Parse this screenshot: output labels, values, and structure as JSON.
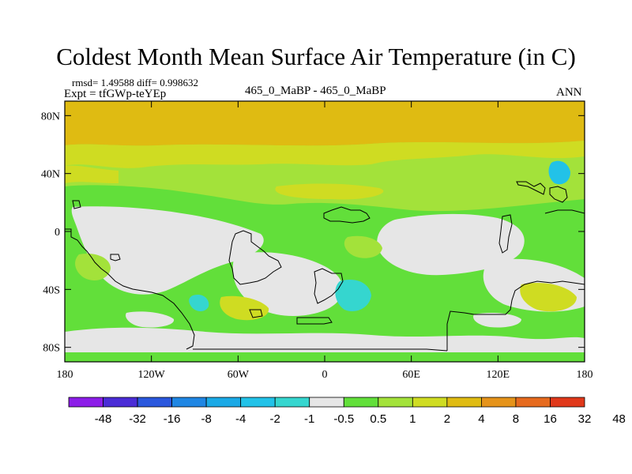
{
  "title": "Coldest Month Mean Surface Air Temperature (in C)",
  "stats": "rmsd= 1.49588  diff= 0.998632",
  "experiment": "Expt = tfGWp-teYEp",
  "subtitle": "465_0_MaBP - 465_0_MaBP",
  "period": "ANN",
  "map": {
    "lon_range": [
      -180,
      180
    ],
    "lat_range": [
      -90,
      90
    ],
    "y_ticks": [
      {
        "label": "80N",
        "lat": 80
      },
      {
        "label": "40N",
        "lat": 40
      },
      {
        "label": "0",
        "lat": 0
      },
      {
        "label": "40S",
        "lat": -40
      },
      {
        "label": "80S",
        "lat": -80
      }
    ],
    "x_ticks": [
      {
        "label": "180",
        "lon": -180
      },
      {
        "label": "120W",
        "lon": -120
      },
      {
        "label": "60W",
        "lon": -60
      },
      {
        "label": "0",
        "lon": 0
      },
      {
        "label": "60E",
        "lon": 60
      },
      {
        "label": "120E",
        "lon": 120
      },
      {
        "label": "180",
        "lon": 180
      }
    ]
  },
  "colorbar": {
    "colors": [
      "#8c1de8",
      "#4a2cd6",
      "#2a57dd",
      "#1f86e3",
      "#1aa9e6",
      "#22c2e8",
      "#35d6cf",
      "#e6e6e6",
      "#62df3a",
      "#a3e23a",
      "#cfdc22",
      "#dfbb12",
      "#e5931a",
      "#e66a1e",
      "#e0381a"
    ],
    "labels": [
      "-48",
      "-32",
      "-16",
      "-8",
      "-4",
      "-2",
      "-1",
      "-0.5",
      "0.5",
      "1",
      "2",
      "4",
      "8",
      "16",
      "32",
      "48"
    ]
  },
  "colors": {
    "orange": "#dfbb12",
    "yellow": "#cfdc22",
    "lightgreen": "#a3e23a",
    "green": "#62df3a",
    "gray": "#e6e6e6",
    "cyan": "#35d6cf",
    "lightblue": "#22c2e8"
  }
}
